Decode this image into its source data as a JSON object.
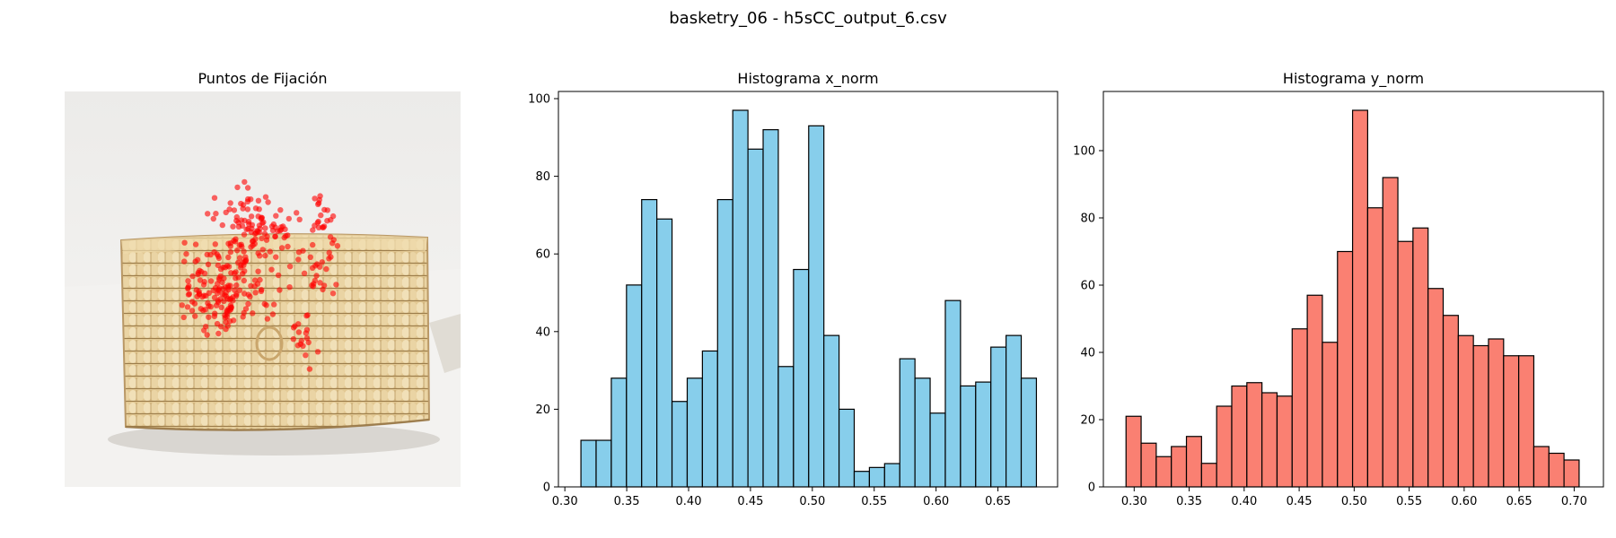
{
  "figure": {
    "suptitle": "basketry_06 - h5sCC_output_6.csv"
  },
  "image_panel": {
    "title": "Puntos de Fijación",
    "fixation_color": "#ff0000"
  },
  "chart_data": [
    {
      "type": "bar",
      "title": "Histograma x_norm",
      "xlabel": "",
      "ylabel": "",
      "bar_color": "#87ceeb",
      "edge_color": "#000000",
      "bin_start": 0.313,
      "bin_width": 0.01227,
      "values": [
        12,
        12,
        28,
        52,
        74,
        69,
        22,
        28,
        35,
        74,
        97,
        87,
        92,
        31,
        56,
        93,
        39,
        20,
        4,
        5,
        6,
        33,
        28,
        19,
        48,
        26,
        27,
        36,
        39,
        28
      ],
      "xlim": [
        0.2948,
        0.6982
      ],
      "ylim": [
        0,
        101.85
      ],
      "xticks": [
        0.3,
        0.35,
        0.4,
        0.45,
        0.5,
        0.55,
        0.6,
        0.65
      ],
      "xtick_labels": [
        "0.30",
        "0.35",
        "0.40",
        "0.45",
        "0.50",
        "0.55",
        "0.60",
        "0.65"
      ],
      "yticks": [
        0,
        20,
        40,
        60,
        80,
        100
      ],
      "ytick_labels": [
        "0",
        "20",
        "40",
        "60",
        "80",
        "100"
      ]
    },
    {
      "type": "bar",
      "title": "Histograma y_norm",
      "xlabel": "",
      "ylabel": "",
      "bar_color": "#fa8072",
      "edge_color": "#000000",
      "bin_start": 0.2926,
      "bin_width": 0.01373,
      "values": [
        21,
        13,
        9,
        12,
        15,
        7,
        24,
        30,
        31,
        28,
        27,
        47,
        57,
        43,
        70,
        112,
        83,
        92,
        73,
        77,
        59,
        51,
        45,
        42,
        44,
        39,
        39,
        12,
        10,
        8
      ],
      "xlim": [
        0.272,
        0.7266
      ],
      "ylim": [
        0,
        117.6
      ],
      "xticks": [
        0.3,
        0.35,
        0.4,
        0.45,
        0.5,
        0.55,
        0.6,
        0.65,
        0.7
      ],
      "xtick_labels": [
        "0.30",
        "0.35",
        "0.40",
        "0.45",
        "0.50",
        "0.55",
        "0.60",
        "0.65",
        "0.70"
      ],
      "yticks": [
        0,
        20,
        40,
        60,
        80,
        100
      ],
      "ytick_labels": [
        "0",
        "20",
        "40",
        "60",
        "80",
        "100"
      ]
    }
  ]
}
